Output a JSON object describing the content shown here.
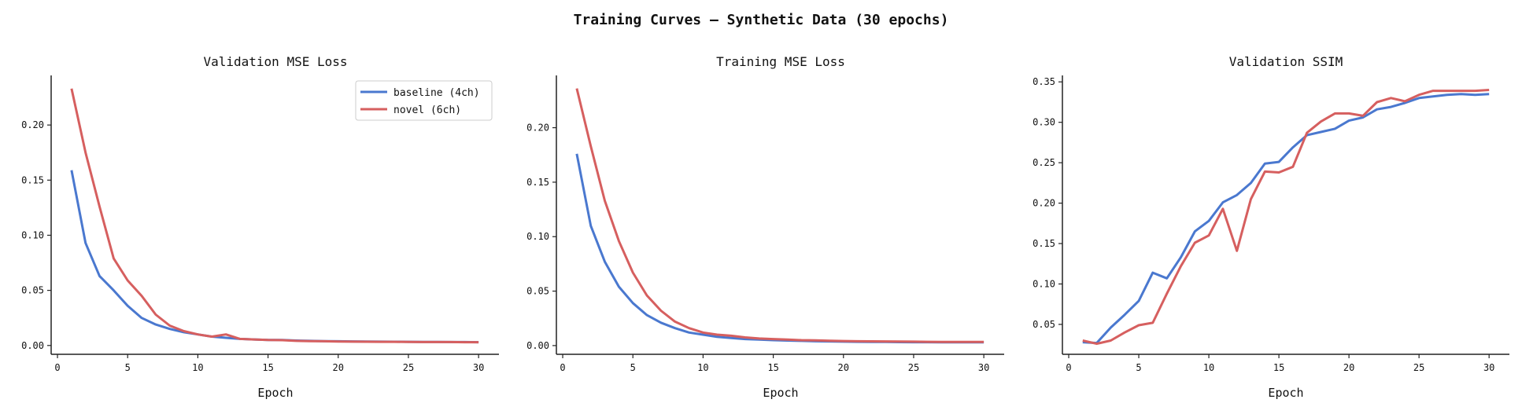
{
  "title": "Training Curves — Synthetic Data (30 epochs)",
  "colors": {
    "baseline": "#4a78cf",
    "novel": "#d65f5f"
  },
  "chart_data": [
    {
      "type": "line",
      "title": "Validation MSE Loss",
      "xlabel": "Epoch",
      "ylabel": "",
      "xlim": [
        -0.45,
        31.45
      ],
      "ylim": [
        -0.008,
        0.245
      ],
      "xticks": [
        0,
        5,
        10,
        15,
        20,
        25,
        30
      ],
      "yticks": [
        0.0,
        0.05,
        0.1,
        0.15,
        0.2
      ],
      "ytick_labels": [
        "0.00",
        "0.05",
        "0.10",
        "0.15",
        "0.20"
      ],
      "grid": false,
      "legend": "upper-right",
      "x": [
        1,
        2,
        3,
        4,
        5,
        6,
        7,
        8,
        9,
        10,
        11,
        12,
        13,
        14,
        15,
        16,
        17,
        18,
        19,
        20,
        21,
        22,
        23,
        24,
        25,
        26,
        27,
        28,
        29,
        30
      ],
      "series": [
        {
          "name": "baseline (4ch)",
          "color_key": "baseline",
          "values": [
            0.159,
            0.093,
            0.063,
            0.05,
            0.036,
            0.025,
            0.019,
            0.015,
            0.012,
            0.01,
            0.008,
            0.007,
            0.006,
            0.0055,
            0.005,
            0.005,
            0.0045,
            0.0042,
            0.004,
            0.0038,
            0.0037,
            0.0036,
            0.0035,
            0.0034,
            0.0033,
            0.0032,
            0.0032,
            0.0031,
            0.0031,
            0.003
          ]
        },
        {
          "name": "novel (6ch)",
          "color_key": "novel",
          "values": [
            0.233,
            0.175,
            0.126,
            0.079,
            0.059,
            0.045,
            0.028,
            0.018,
            0.013,
            0.01,
            0.008,
            0.01,
            0.006,
            0.0055,
            0.005,
            0.0048,
            0.0042,
            0.004,
            0.0038,
            0.0036,
            0.0035,
            0.0034,
            0.0033,
            0.0033,
            0.0032,
            0.0031,
            0.0031,
            0.0031,
            0.003,
            0.003
          ]
        }
      ]
    },
    {
      "type": "line",
      "title": "Training MSE Loss",
      "xlabel": "Epoch",
      "ylabel": "",
      "xlim": [
        -0.45,
        31.45
      ],
      "ylim": [
        -0.008,
        0.248
      ],
      "xticks": [
        0,
        5,
        10,
        15,
        20,
        25,
        30
      ],
      "yticks": [
        0.0,
        0.05,
        0.1,
        0.15,
        0.2
      ],
      "ytick_labels": [
        "0.00",
        "0.05",
        "0.10",
        "0.15",
        "0.20"
      ],
      "grid": false,
      "legend": "none",
      "x": [
        1,
        2,
        3,
        4,
        5,
        6,
        7,
        8,
        9,
        10,
        11,
        12,
        13,
        14,
        15,
        16,
        17,
        18,
        19,
        20,
        21,
        22,
        23,
        24,
        25,
        26,
        27,
        28,
        29,
        30
      ],
      "series": [
        {
          "name": "baseline (4ch)",
          "color_key": "baseline",
          "values": [
            0.176,
            0.11,
            0.077,
            0.054,
            0.039,
            0.028,
            0.021,
            0.016,
            0.012,
            0.01,
            0.008,
            0.007,
            0.006,
            0.0055,
            0.005,
            0.0046,
            0.0043,
            0.004,
            0.0038,
            0.0036,
            0.0035,
            0.0034,
            0.0033,
            0.0032,
            0.0031,
            0.0031,
            0.003,
            0.003,
            0.003,
            0.003
          ]
        },
        {
          "name": "novel (6ch)",
          "color_key": "novel",
          "values": [
            0.236,
            0.183,
            0.133,
            0.096,
            0.067,
            0.046,
            0.032,
            0.022,
            0.016,
            0.012,
            0.01,
            0.009,
            0.0075,
            0.0065,
            0.006,
            0.0055,
            0.005,
            0.0048,
            0.0045,
            0.0042,
            0.004,
            0.0039,
            0.0038,
            0.0037,
            0.0036,
            0.0035,
            0.0034,
            0.0034,
            0.0033,
            0.0033
          ]
        }
      ]
    },
    {
      "type": "line",
      "title": "Validation SSIM",
      "xlabel": "Epoch",
      "ylabel": "",
      "xlim": [
        -0.45,
        31.45
      ],
      "ylim": [
        0.013,
        0.358
      ],
      "xticks": [
        0,
        5,
        10,
        15,
        20,
        25,
        30
      ],
      "yticks": [
        0.05,
        0.1,
        0.15,
        0.2,
        0.25,
        0.3,
        0.35
      ],
      "ytick_labels": [
        "0.05",
        "0.10",
        "0.15",
        "0.20",
        "0.25",
        "0.30",
        "0.35"
      ],
      "grid": false,
      "legend": "none",
      "x": [
        1,
        2,
        3,
        4,
        5,
        6,
        7,
        8,
        9,
        10,
        11,
        12,
        13,
        14,
        15,
        16,
        17,
        18,
        19,
        20,
        21,
        22,
        23,
        24,
        25,
        26,
        27,
        28,
        29,
        30
      ],
      "series": [
        {
          "name": "baseline (4ch)",
          "color_key": "baseline",
          "values": [
            0.028,
            0.027,
            0.046,
            0.062,
            0.079,
            0.114,
            0.107,
            0.133,
            0.165,
            0.178,
            0.201,
            0.21,
            0.225,
            0.249,
            0.251,
            0.269,
            0.284,
            0.288,
            0.292,
            0.302,
            0.306,
            0.316,
            0.319,
            0.324,
            0.33,
            0.332,
            0.334,
            0.335,
            0.334,
            0.335
          ]
        },
        {
          "name": "novel (6ch)",
          "color_key": "novel",
          "values": [
            0.03,
            0.026,
            0.03,
            0.04,
            0.049,
            0.052,
            0.088,
            0.122,
            0.151,
            0.16,
            0.193,
            0.141,
            0.205,
            0.239,
            0.238,
            0.245,
            0.287,
            0.301,
            0.311,
            0.311,
            0.308,
            0.325,
            0.33,
            0.326,
            0.334,
            0.339,
            0.339,
            0.339,
            0.339,
            0.34
          ]
        }
      ]
    }
  ]
}
